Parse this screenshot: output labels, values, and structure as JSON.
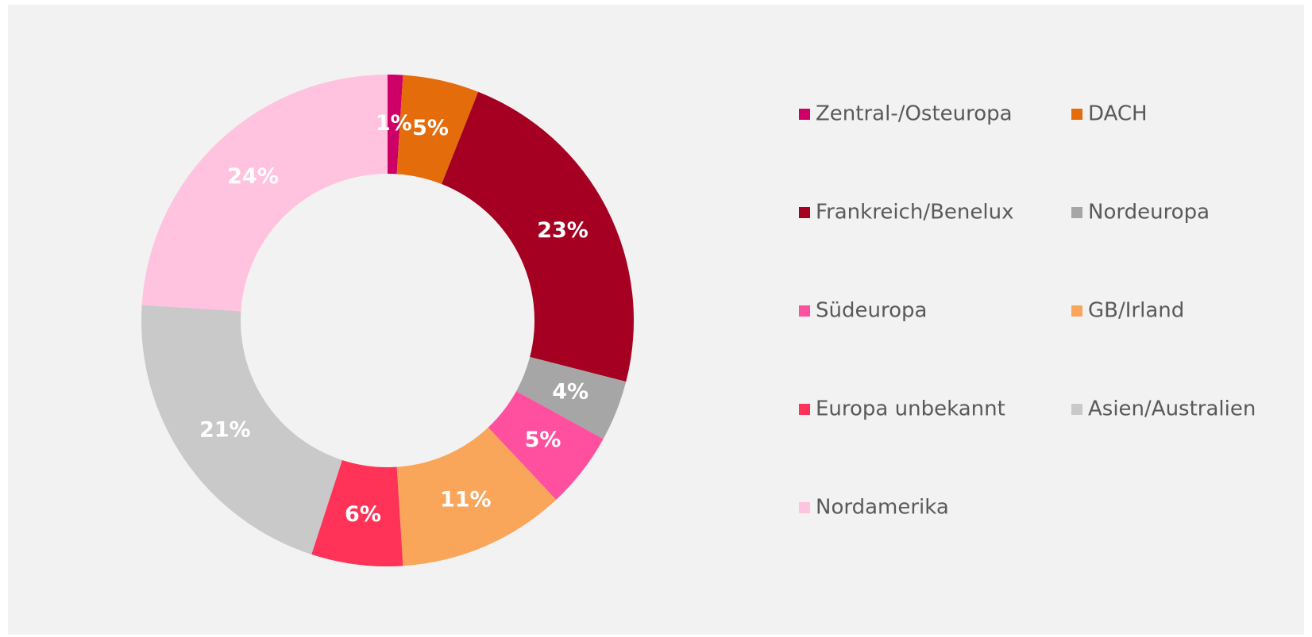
{
  "chart_data": {
    "type": "donut",
    "categories": [
      "Zentral-/Osteuropa",
      "DACH",
      "Frankreich/Benelux",
      "Nordeuropa",
      "Südeuropa",
      "GB/Irland",
      "Europa unbekannt",
      "Asien/Australien",
      "Nordamerika"
    ],
    "values": [
      1,
      5,
      23,
      4,
      5,
      11,
      6,
      21,
      24
    ],
    "value_labels": [
      "1%",
      "5%",
      "23%",
      "4%",
      "5%",
      "11%",
      "6%",
      "21%",
      "24%"
    ],
    "colors": [
      "#cc0066",
      "#e46c0a",
      "#a50021",
      "#a6a6a6",
      "#ff4f9f",
      "#f9a65a",
      "#ff3358",
      "#c9c9c9",
      "#ffc2df"
    ],
    "legend": "right"
  }
}
